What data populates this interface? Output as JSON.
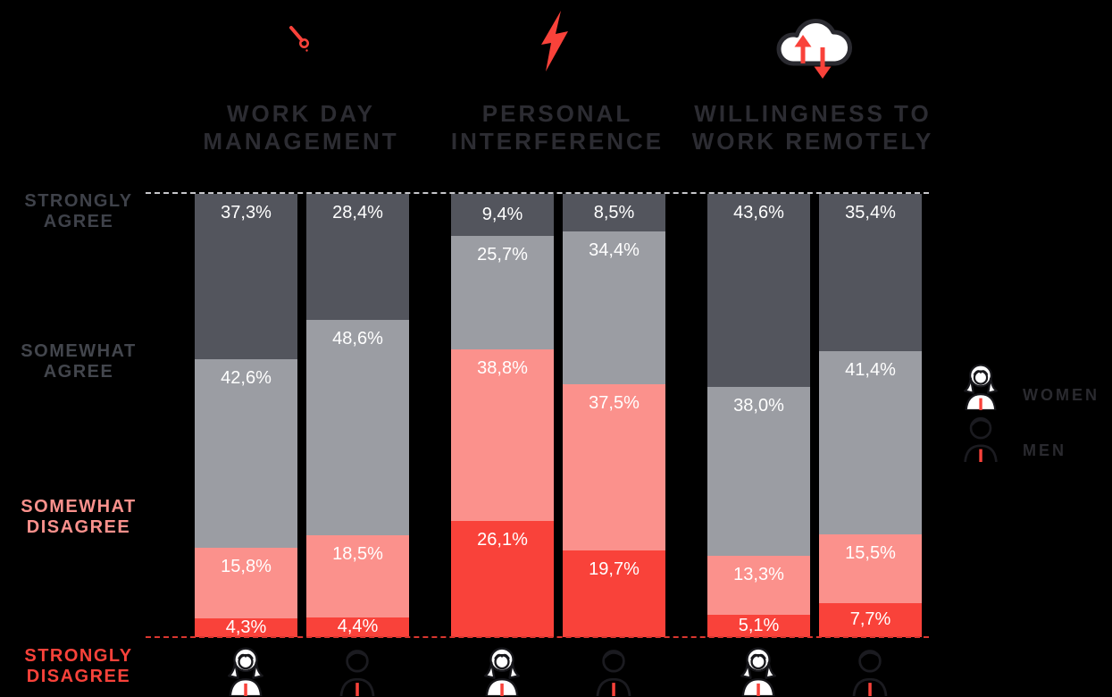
{
  "page": {
    "background": "#000000",
    "accent_red": "#f9423a"
  },
  "axis": {
    "levels": [
      {
        "label_lines": [
          "STRONGLY",
          "AGREE"
        ],
        "color": "#3f424a"
      },
      {
        "label_lines": [
          "SOMEWHAT",
          "AGREE"
        ],
        "color": "#43464d"
      },
      {
        "label_lines": [
          "SOMEWHAT",
          "DISAGREE"
        ],
        "color": "#fb918c"
      },
      {
        "label_lines": [
          "STRONGLY",
          "DISAGREE"
        ],
        "color": "#f9423a"
      }
    ]
  },
  "legend": {
    "items": [
      {
        "label": "WOMEN",
        "icon": "woman-icon"
      },
      {
        "label": "MEN",
        "icon": "man-icon"
      }
    ]
  },
  "chart_data": {
    "type": "bar",
    "variant": "stacked-100-percent",
    "ylim": [
      0,
      100
    ],
    "unit": "%",
    "decimal_separator": ",",
    "segments_order_top_to_bottom": [
      "STRONGLY AGREE",
      "SOMEWHAT AGREE",
      "SOMEWHAT DISAGREE",
      "STRONGLY DISAGREE"
    ],
    "segment_colors": {
      "STRONGLY AGREE": "#53555d",
      "SOMEWHAT AGREE": "#9b9da3",
      "SOMEWHAT DISAGREE": "#fb918c",
      "STRONGLY DISAGREE": "#f9423a"
    },
    "groups": [
      {
        "title_lines": [
          "WORK DAY",
          "MANAGEMENT"
        ],
        "icon": "clock-hand-icon",
        "bars": [
          {
            "series": "WOMEN",
            "values": [
              37.3,
              42.6,
              15.8,
              4.3
            ],
            "labels": [
              "37,3%",
              "42,6%",
              "15,8%",
              "4,3%"
            ]
          },
          {
            "series": "MEN",
            "values": [
              28.4,
              48.6,
              18.5,
              4.4
            ],
            "labels": [
              "28,4%",
              "48,6%",
              "18,5%",
              "4,4%"
            ]
          }
        ]
      },
      {
        "title_lines": [
          "PERSONAL",
          "INTERFERENCE"
        ],
        "icon": "lightning-icon",
        "bars": [
          {
            "series": "WOMEN",
            "values": [
              9.4,
              25.7,
              38.8,
              26.1
            ],
            "labels": [
              "9,4%",
              "25,7%",
              "38,8%",
              "26,1%"
            ]
          },
          {
            "series": "MEN",
            "values": [
              8.5,
              34.4,
              37.5,
              19.7
            ],
            "labels": [
              "8,5%",
              "34,4%",
              "37,5%",
              "19,7%"
            ]
          }
        ]
      },
      {
        "title_lines": [
          "WILLINGNESS TO",
          "WORK REMOTELY"
        ],
        "icon": "cloud-sync-icon",
        "bars": [
          {
            "series": "WOMEN",
            "values": [
              43.6,
              38.0,
              13.3,
              5.1
            ],
            "labels": [
              "43,6%",
              "38,0%",
              "13,3%",
              "5,1%"
            ]
          },
          {
            "series": "MEN",
            "values": [
              35.4,
              41.4,
              15.5,
              7.7
            ],
            "labels": [
              "35,4%",
              "41,4%",
              "15,5%",
              "7,7%"
            ]
          }
        ]
      }
    ]
  }
}
